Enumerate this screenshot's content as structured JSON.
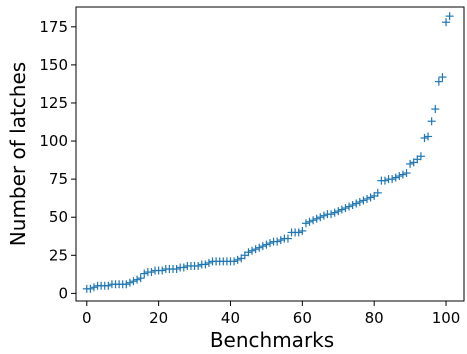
{
  "chart_data": {
    "type": "scatter",
    "title": "",
    "xlabel": "Benchmarks",
    "ylabel": "Number of latches",
    "xlim": [
      -3,
      105
    ],
    "ylim": [
      -5,
      188
    ],
    "xticks": [
      0,
      20,
      40,
      60,
      80,
      100
    ],
    "yticks": [
      0,
      25,
      50,
      75,
      100,
      125,
      150,
      175
    ],
    "marker": "+",
    "grid": false,
    "legend": "none",
    "color": "#1f77b4",
    "x": [
      0,
      1,
      2,
      3,
      4,
      5,
      6,
      7,
      8,
      9,
      10,
      11,
      12,
      13,
      14,
      15,
      16,
      17,
      18,
      19,
      20,
      21,
      22,
      23,
      24,
      25,
      26,
      27,
      28,
      29,
      30,
      31,
      32,
      33,
      34,
      35,
      36,
      37,
      38,
      39,
      40,
      41,
      42,
      43,
      44,
      45,
      46,
      47,
      48,
      49,
      50,
      51,
      52,
      53,
      54,
      55,
      56,
      57,
      58,
      59,
      60,
      61,
      62,
      63,
      64,
      65,
      66,
      67,
      68,
      69,
      70,
      71,
      72,
      73,
      74,
      75,
      76,
      77,
      78,
      79,
      80,
      81,
      82,
      83,
      84,
      85,
      86,
      87,
      88,
      89,
      90,
      91,
      92,
      93,
      94,
      95,
      96,
      97,
      98,
      99,
      100,
      101
    ],
    "y": [
      3,
      3,
      4,
      5,
      5,
      5,
      5,
      6,
      6,
      6,
      6,
      6,
      7,
      8,
      9,
      10,
      13,
      14,
      14,
      15,
      15,
      15,
      16,
      16,
      16,
      16,
      17,
      17,
      18,
      18,
      18,
      18,
      19,
      19,
      20,
      21,
      21,
      21,
      21,
      21,
      21,
      21,
      22,
      23,
      25,
      27,
      28,
      29,
      30,
      31,
      32,
      33,
      34,
      34,
      35,
      36,
      36,
      40,
      40,
      40,
      41,
      46,
      47,
      48,
      49,
      50,
      51,
      52,
      52,
      53,
      54,
      55,
      56,
      57,
      58,
      59,
      60,
      61,
      62,
      63,
      64,
      66,
      74,
      74,
      75,
      75,
      76,
      77,
      78,
      79,
      85,
      86,
      88,
      90,
      102,
      103,
      113,
      121,
      139,
      142,
      178,
      182
    ]
  }
}
